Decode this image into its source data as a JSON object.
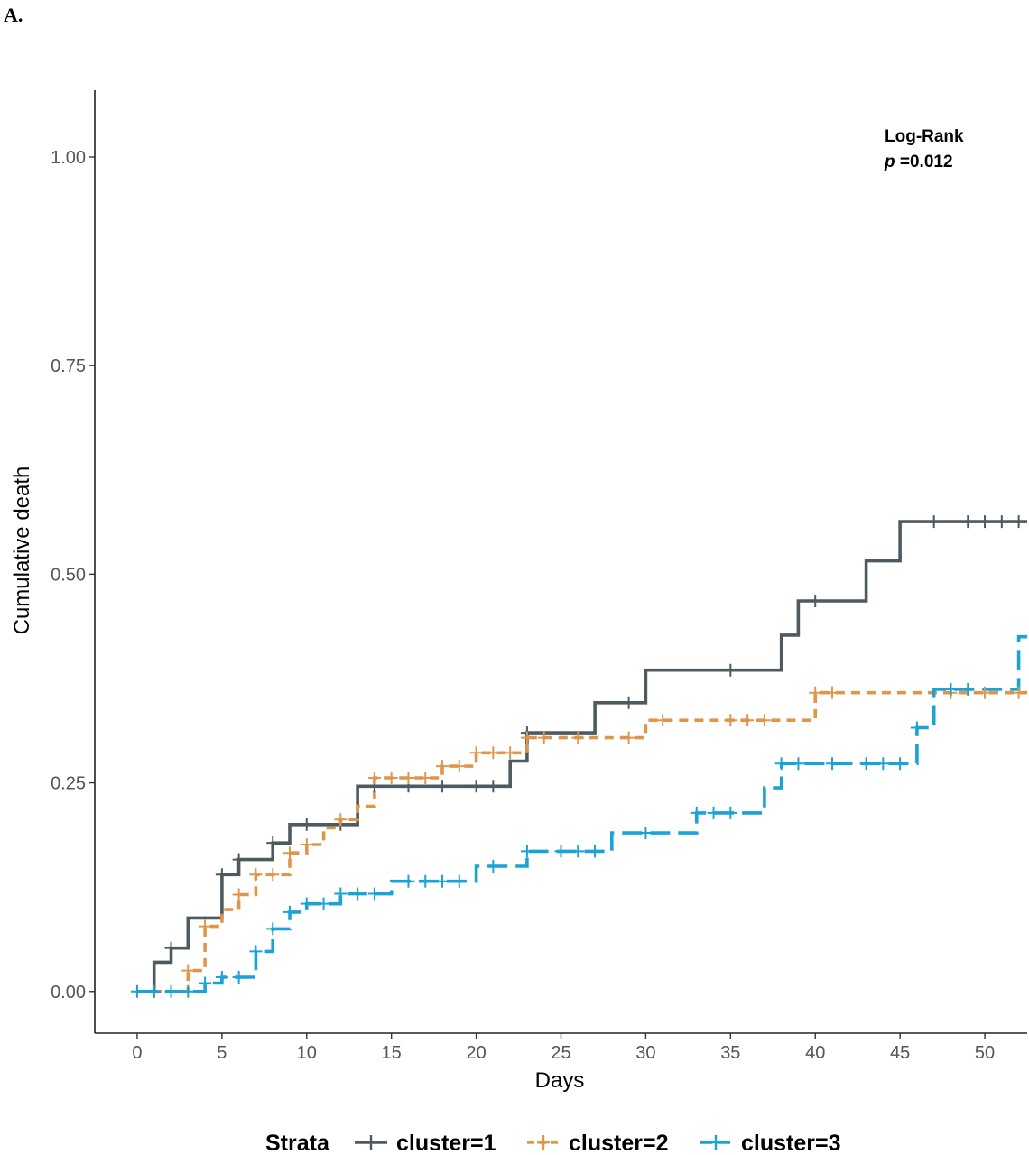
{
  "panel_label": "A.",
  "chart_data": {
    "type": "line",
    "step": true,
    "xlabel": "Days",
    "ylabel": "Cumulative death",
    "xlim": [
      -2.5,
      52.5
    ],
    "ylim": [
      -0.05,
      1.08
    ],
    "x_ticks": [
      0,
      5,
      10,
      15,
      20,
      25,
      30,
      35,
      40,
      45,
      50
    ],
    "x_tick_labels": [
      "0",
      "5",
      "10",
      "15",
      "20",
      "25",
      "30",
      "35",
      "40",
      "45",
      "50"
    ],
    "y_ticks": [
      0,
      0.25,
      0.5,
      0.75,
      1.0
    ],
    "y_tick_labels": [
      "0.00",
      "0.25",
      "0.50",
      "0.75",
      "1.00"
    ],
    "grid": false,
    "annotation": {
      "line1": "Log-Rank",
      "p_symbol": "p",
      "p_text": " =0.012"
    },
    "legend": {
      "title": "Strata",
      "position": "bottom"
    },
    "series": [
      {
        "name": "cluster=1",
        "color": "#4d5a60",
        "dash": "solid",
        "steps": [
          [
            0,
            0
          ],
          [
            1,
            0.035
          ],
          [
            2,
            0.052
          ],
          [
            3,
            0.088
          ],
          [
            5,
            0.14
          ],
          [
            6,
            0.158
          ],
          [
            8,
            0.178
          ],
          [
            9,
            0.2
          ],
          [
            13,
            0.246
          ],
          [
            22,
            0.276
          ],
          [
            23,
            0.31
          ],
          [
            27,
            0.346
          ],
          [
            30,
            0.385
          ],
          [
            38,
            0.427
          ],
          [
            39,
            0.468
          ],
          [
            43,
            0.516
          ],
          [
            45,
            0.563
          ],
          [
            52.5,
            0.563
          ]
        ],
        "censor": [
          [
            1,
            0
          ],
          [
            2,
            0.052
          ],
          [
            5,
            0.14
          ],
          [
            6,
            0.158
          ],
          [
            8,
            0.178
          ],
          [
            10,
            0.2
          ],
          [
            12,
            0.2
          ],
          [
            14,
            0.246
          ],
          [
            16,
            0.246
          ],
          [
            18,
            0.246
          ],
          [
            20,
            0.246
          ],
          [
            21,
            0.246
          ],
          [
            23,
            0.31
          ],
          [
            29,
            0.346
          ],
          [
            35,
            0.385
          ],
          [
            40,
            0.468
          ],
          [
            47,
            0.563
          ],
          [
            49,
            0.563
          ],
          [
            50,
            0.563
          ],
          [
            51,
            0.563
          ],
          [
            52,
            0.563
          ]
        ]
      },
      {
        "name": "cluster=2",
        "color": "#e0964a",
        "dash": "10,7",
        "steps": [
          [
            0,
            0
          ],
          [
            3,
            0.025
          ],
          [
            4,
            0.078
          ],
          [
            5,
            0.098
          ],
          [
            6,
            0.116
          ],
          [
            7,
            0.14
          ],
          [
            9,
            0.166
          ],
          [
            10,
            0.176
          ],
          [
            11,
            0.196
          ],
          [
            12,
            0.206
          ],
          [
            13,
            0.222
          ],
          [
            14,
            0.256
          ],
          [
            18,
            0.27
          ],
          [
            20,
            0.286
          ],
          [
            23,
            0.304
          ],
          [
            30,
            0.325
          ],
          [
            40,
            0.358
          ],
          [
            52.5,
            0.358
          ]
        ],
        "censor": [
          [
            3,
            0.025
          ],
          [
            4,
            0.078
          ],
          [
            6,
            0.116
          ],
          [
            7,
            0.14
          ],
          [
            8,
            0.14
          ],
          [
            9,
            0.166
          ],
          [
            10,
            0.176
          ],
          [
            12,
            0.206
          ],
          [
            14,
            0.256
          ],
          [
            15,
            0.256
          ],
          [
            16,
            0.256
          ],
          [
            17,
            0.256
          ],
          [
            18,
            0.27
          ],
          [
            19,
            0.27
          ],
          [
            20,
            0.286
          ],
          [
            21,
            0.286
          ],
          [
            22,
            0.286
          ],
          [
            23,
            0.304
          ],
          [
            24,
            0.304
          ],
          [
            26,
            0.304
          ],
          [
            29,
            0.304
          ],
          [
            31,
            0.325
          ],
          [
            35,
            0.325
          ],
          [
            36,
            0.325
          ],
          [
            37,
            0.325
          ],
          [
            40,
            0.358
          ],
          [
            41,
            0.358
          ],
          [
            48,
            0.358
          ],
          [
            50,
            0.358
          ],
          [
            52,
            0.358
          ]
        ]
      },
      {
        "name": "cluster=3",
        "color": "#1aa3d6",
        "dash": "22,9",
        "steps": [
          [
            0,
            0
          ],
          [
            4,
            0.01
          ],
          [
            5,
            0.017
          ],
          [
            7,
            0.048
          ],
          [
            8,
            0.075
          ],
          [
            9,
            0.095
          ],
          [
            10,
            0.105
          ],
          [
            12,
            0.117
          ],
          [
            15,
            0.132
          ],
          [
            20,
            0.15
          ],
          [
            23,
            0.168
          ],
          [
            28,
            0.19
          ],
          [
            33,
            0.214
          ],
          [
            37,
            0.244
          ],
          [
            38,
            0.273
          ],
          [
            46,
            0.316
          ],
          [
            47,
            0.362
          ],
          [
            52,
            0.425
          ],
          [
            52.5,
            0.425
          ]
        ],
        "censor": [
          [
            0,
            0
          ],
          [
            1,
            0
          ],
          [
            2,
            0
          ],
          [
            3,
            0
          ],
          [
            4,
            0.01
          ],
          [
            5,
            0.017
          ],
          [
            6,
            0.017
          ],
          [
            7,
            0.048
          ],
          [
            8,
            0.075
          ],
          [
            9,
            0.095
          ],
          [
            10,
            0.105
          ],
          [
            11,
            0.105
          ],
          [
            12,
            0.117
          ],
          [
            13,
            0.117
          ],
          [
            14,
            0.117
          ],
          [
            16,
            0.132
          ],
          [
            17,
            0.132
          ],
          [
            18,
            0.132
          ],
          [
            19,
            0.132
          ],
          [
            21,
            0.15
          ],
          [
            23,
            0.168
          ],
          [
            25,
            0.168
          ],
          [
            26,
            0.168
          ],
          [
            27,
            0.168
          ],
          [
            30,
            0.19
          ],
          [
            33,
            0.214
          ],
          [
            34,
            0.214
          ],
          [
            35,
            0.214
          ],
          [
            38,
            0.273
          ],
          [
            39,
            0.273
          ],
          [
            41,
            0.273
          ],
          [
            43,
            0.273
          ],
          [
            44,
            0.273
          ],
          [
            45,
            0.273
          ],
          [
            46,
            0.316
          ],
          [
            48,
            0.362
          ],
          [
            49,
            0.362
          ]
        ]
      }
    ]
  }
}
